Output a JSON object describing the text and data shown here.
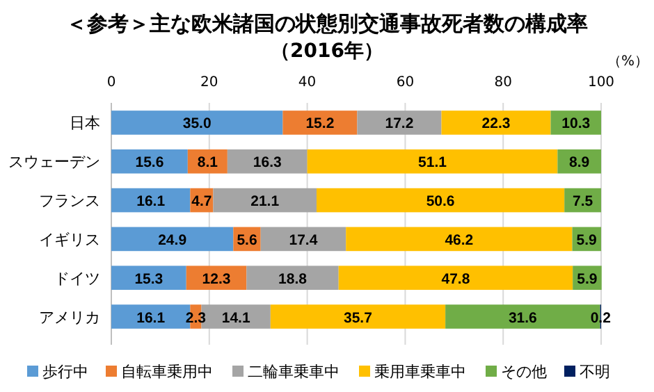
{
  "chart_data": {
    "type": "bar",
    "orientation": "horizontal",
    "stacked": true,
    "title": "＜参考＞主な欧米諸国の状態別交通事故死者数の構成率",
    "subtitle": "（2016年）",
    "xlabel": "（%）",
    "categories": [
      "日本",
      "スウェーデン",
      "フランス",
      "イギリス",
      "ドイツ",
      "アメリカ"
    ],
    "series": [
      {
        "name": "歩行中",
        "color": "#5b9bd5",
        "values": [
          35.0,
          15.6,
          16.1,
          24.9,
          15.3,
          16.1
        ],
        "value_labels": [
          "35.0",
          "15.6",
          "16.1",
          "24.9",
          "15.3",
          "16.1"
        ]
      },
      {
        "name": "自転車乗用中",
        "color": "#ed7d31",
        "values": [
          15.2,
          8.1,
          4.7,
          5.6,
          12.3,
          2.3
        ],
        "value_labels": [
          "15.2",
          "8.1",
          "4.7",
          "5.6",
          "12.3",
          "2.3"
        ]
      },
      {
        "name": "二輪車乗車中",
        "color": "#a5a5a5",
        "values": [
          17.2,
          16.3,
          21.1,
          17.4,
          18.8,
          14.1
        ],
        "value_labels": [
          "17.2",
          "16.3",
          "21.1",
          "17.4",
          "18.8",
          "14.1"
        ]
      },
      {
        "name": "乗用車乗車中",
        "color": "#ffc000",
        "values": [
          22.3,
          51.1,
          50.6,
          46.2,
          47.8,
          35.7
        ],
        "value_labels": [
          "22.3",
          "51.1",
          "50.6",
          "46.2",
          "47.8",
          "35.7"
        ]
      },
      {
        "name": "その他",
        "color": "#70ad47",
        "values": [
          10.3,
          8.9,
          7.5,
          5.9,
          5.9,
          31.6
        ],
        "value_labels": [
          "10.3",
          "8.9",
          "7.5",
          "5.9",
          "5.9",
          "31.6"
        ]
      },
      {
        "name": "不明",
        "color": "#002060",
        "values": [
          0,
          0,
          0,
          0,
          0,
          0.2
        ],
        "value_labels": [
          null,
          null,
          null,
          null,
          null,
          "0.2"
        ]
      }
    ],
    "xlim": [
      0,
      100
    ],
    "xticks": [
      0,
      20,
      40,
      60,
      80,
      100
    ],
    "grid": "x",
    "legend": "bottom"
  }
}
